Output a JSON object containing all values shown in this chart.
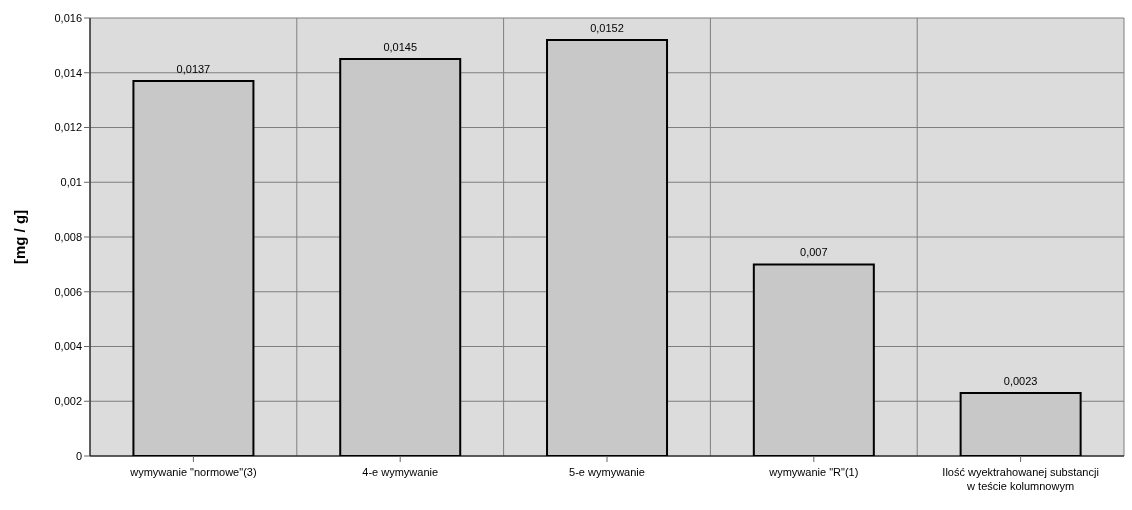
{
  "chart_data": {
    "type": "bar",
    "ylabel": "[mg / g]",
    "categories": [
      "wymywanie \"normowe\"(3)",
      "4-e wymywanie",
      "5-e wymywanie",
      "wymywanie \"R\"(1)",
      "Ilość wyektrahowanej substancji w teście kolumnowym"
    ],
    "values": [
      0.0137,
      0.0145,
      0.0152,
      0.007,
      0.0023
    ],
    "value_labels": [
      "0,0137",
      "0,0145",
      "0,0152",
      "0,007",
      "0,0023"
    ],
    "color": "#c8c8c8",
    "ylim": [
      0,
      0.016
    ],
    "yticks": [
      0,
      {
        "value": 0.002,
        "label": "0,002"
      },
      {
        "value": 0.004,
        "label": "0,004"
      },
      {
        "value": 0.006,
        "label": "0,006"
      },
      {
        "value": 0.008,
        "label": "0,008"
      },
      {
        "value": 0.01,
        "label": "0,01"
      },
      {
        "value": 0.012,
        "label": "0,012"
      },
      {
        "value": 0.014,
        "label": "0,014"
      },
      {
        "value": 0.016,
        "label": "0,016"
      }
    ],
    "grid": true,
    "legend": false
  }
}
